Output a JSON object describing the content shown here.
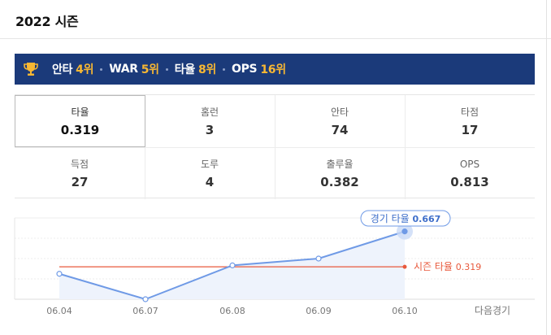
{
  "header": {
    "title": "2022 시즌"
  },
  "ranking": {
    "items": [
      {
        "label": "안타",
        "rank": "4위"
      },
      {
        "label": "WAR",
        "rank": "5위"
      },
      {
        "label": "타율",
        "rank": "8위"
      },
      {
        "label": "OPS",
        "rank": "16위"
      }
    ],
    "icon": "trophy-icon",
    "background_color": "#1b3a7a",
    "rank_color": "#f7b733"
  },
  "stats": [
    {
      "label": "타율",
      "value": "0.319",
      "selected": true
    },
    {
      "label": "홈런",
      "value": "3"
    },
    {
      "label": "안타",
      "value": "74"
    },
    {
      "label": "타점",
      "value": "17"
    },
    {
      "label": "득점",
      "value": "27"
    },
    {
      "label": "도루",
      "value": "4"
    },
    {
      "label": "출루율",
      "value": "0.382"
    },
    {
      "label": "OPS",
      "value": "0.813"
    }
  ],
  "chart_data": {
    "type": "line",
    "x": [
      "06.04",
      "06.07",
      "06.08",
      "06.09",
      "06.10"
    ],
    "next_label": "다음경기",
    "series": [
      {
        "values": [
          0.25,
          0.0,
          0.333,
          0.4,
          0.667
        ],
        "color": "#6f9ae6"
      }
    ],
    "reference": {
      "label": "시즌 타율",
      "value": "0.319",
      "color": "#e8593c"
    },
    "tooltip": {
      "label": "경기 타율",
      "value": "0.667"
    },
    "ylim": [
      0,
      0.8
    ]
  }
}
